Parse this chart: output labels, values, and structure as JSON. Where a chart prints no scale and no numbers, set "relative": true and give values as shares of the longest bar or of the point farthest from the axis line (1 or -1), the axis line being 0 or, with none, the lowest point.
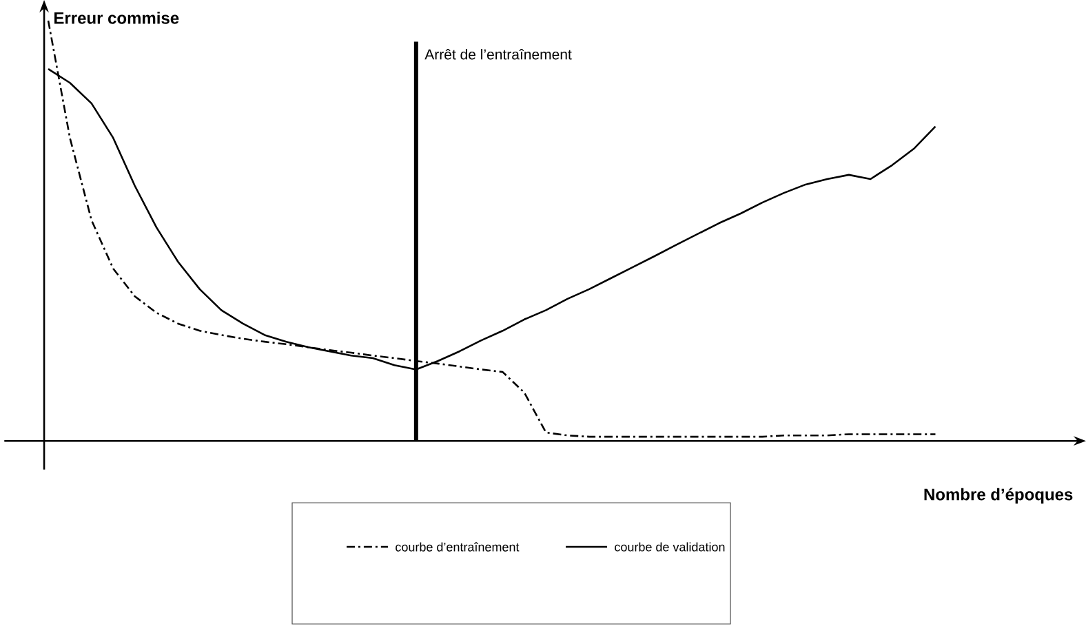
{
  "chart_data": {
    "type": "line",
    "relative": true,
    "ylabel": "Erreur commise",
    "xlabel": "Nombre d’époques",
    "categories": [
      null,
      null,
      null,
      null,
      null,
      null,
      null,
      null,
      null,
      null,
      null,
      null,
      null,
      null,
      null,
      null,
      null,
      null,
      null,
      null,
      null,
      null,
      null,
      null,
      null,
      null,
      null,
      null,
      null,
      null,
      null,
      null,
      null,
      null,
      null,
      null,
      null,
      null,
      null,
      null,
      null,
      null
    ],
    "series": [
      {
        "name": "courbe d’entraînement",
        "color": "#000000",
        "line_style": "dashdot",
        "values": [
          1.0,
          0.721,
          0.525,
          0.41,
          0.344,
          0.305,
          0.279,
          0.262,
          0.252,
          0.243,
          0.236,
          0.23,
          0.223,
          0.216,
          0.21,
          0.203,
          0.197,
          0.19,
          0.184,
          0.177,
          0.17,
          0.164,
          0.115,
          0.02,
          0.013,
          0.01,
          0.01,
          0.01,
          0.01,
          0.01,
          0.01,
          0.01,
          0.01,
          0.01,
          0.013,
          0.013,
          0.013,
          0.016,
          0.016,
          0.016,
          0.016,
          0.016
        ]
      },
      {
        "name": "courbe de validation",
        "color": "#000000",
        "line_style": "solid",
        "values": [
          0.885,
          0.852,
          0.803,
          0.721,
          0.607,
          0.508,
          0.426,
          0.361,
          0.311,
          0.279,
          0.252,
          0.236,
          0.223,
          0.213,
          0.203,
          0.197,
          0.18,
          0.17,
          0.19,
          0.213,
          0.239,
          0.262,
          0.289,
          0.311,
          0.338,
          0.361,
          0.387,
          0.413,
          0.439,
          0.466,
          0.492,
          0.518,
          0.541,
          0.567,
          0.59,
          0.61,
          0.623,
          0.633,
          0.623,
          0.656,
          0.695,
          0.748
        ]
      }
    ],
    "annotations": [
      "Arrêt de l’entraînement"
    ],
    "legend": "bottom"
  }
}
